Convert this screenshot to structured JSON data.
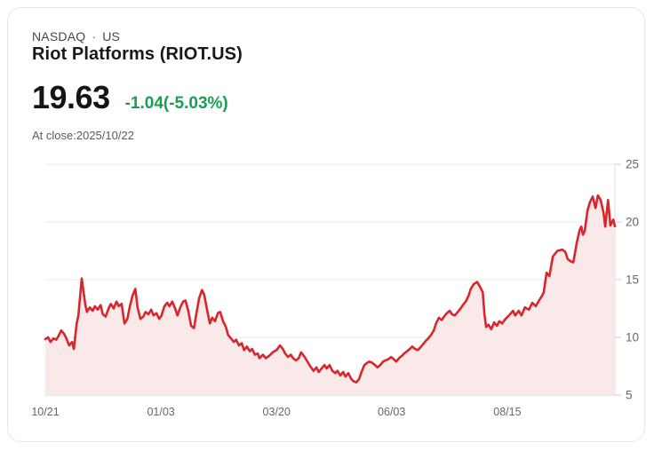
{
  "header": {
    "exchange": "NASDAQ",
    "separator": "·",
    "region": "US",
    "title": "Riot Platforms (RIOT.US)",
    "price": "19.63",
    "change": "-1.04(-5.03%)",
    "as_of": "At close:2025/10/22"
  },
  "colors": {
    "change_green": "#18a052",
    "line_red": "#d8262c",
    "area_pink": "#fae9e9",
    "grid": "#e8e8e8",
    "axis_strong": "#cfcfcf",
    "axis_right": "#dcdcdc",
    "tick_label": "#64686d"
  },
  "chart_data": {
    "type": "area",
    "title": "Riot Platforms (RIOT.US) 1-year price chart",
    "symbol": "RIOT.US",
    "last_price": 19.63,
    "x_range": [
      "2024/10/21",
      "2025/10/22"
    ],
    "ylim": [
      5,
      25
    ],
    "y_ticks": [
      25,
      20,
      15,
      10,
      5
    ],
    "x_ticks": [
      {
        "label": "10/21",
        "f": 0.0
      },
      {
        "label": "01/03",
        "f": 0.203
      },
      {
        "label": "03/20",
        "f": 0.406
      },
      {
        "label": "06/03",
        "f": 0.608
      },
      {
        "label": "08/15",
        "f": 0.811
      }
    ],
    "grid": true,
    "legend": false,
    "points": [
      [
        0.0,
        9.85
      ],
      [
        0.005,
        10.0
      ],
      [
        0.009,
        9.6
      ],
      [
        0.014,
        9.9
      ],
      [
        0.019,
        9.8
      ],
      [
        0.023,
        10.1
      ],
      [
        0.028,
        10.6
      ],
      [
        0.033,
        10.3
      ],
      [
        0.037,
        9.9
      ],
      [
        0.042,
        9.3
      ],
      [
        0.047,
        9.6
      ],
      [
        0.05,
        9.0
      ],
      [
        0.055,
        11.2
      ],
      [
        0.058,
        11.9
      ],
      [
        0.061,
        13.5
      ],
      [
        0.064,
        15.1
      ],
      [
        0.067,
        14.0
      ],
      [
        0.07,
        12.9
      ],
      [
        0.073,
        12.2
      ],
      [
        0.078,
        12.6
      ],
      [
        0.083,
        12.3
      ],
      [
        0.087,
        12.7
      ],
      [
        0.092,
        12.4
      ],
      [
        0.097,
        12.8
      ],
      [
        0.101,
        12.0
      ],
      [
        0.106,
        11.8
      ],
      [
        0.111,
        12.5
      ],
      [
        0.115,
        12.9
      ],
      [
        0.12,
        12.5
      ],
      [
        0.125,
        13.1
      ],
      [
        0.129,
        12.7
      ],
      [
        0.134,
        12.9
      ],
      [
        0.139,
        11.2
      ],
      [
        0.144,
        11.6
      ],
      [
        0.148,
        12.6
      ],
      [
        0.153,
        13.6
      ],
      [
        0.158,
        14.2
      ],
      [
        0.162,
        12.6
      ],
      [
        0.167,
        11.6
      ],
      [
        0.172,
        11.8
      ],
      [
        0.176,
        12.2
      ],
      [
        0.181,
        12.0
      ],
      [
        0.186,
        12.4
      ],
      [
        0.19,
        11.9
      ],
      [
        0.195,
        12.1
      ],
      [
        0.2,
        11.6
      ],
      [
        0.204,
        11.9
      ],
      [
        0.209,
        12.7
      ],
      [
        0.214,
        13.0
      ],
      [
        0.218,
        12.7
      ],
      [
        0.223,
        13.1
      ],
      [
        0.228,
        12.5
      ],
      [
        0.232,
        11.9
      ],
      [
        0.237,
        12.6
      ],
      [
        0.242,
        13.1
      ],
      [
        0.246,
        13.2
      ],
      [
        0.251,
        12.3
      ],
      [
        0.256,
        11.0
      ],
      [
        0.261,
        10.8
      ],
      [
        0.265,
        12.0
      ],
      [
        0.27,
        13.4
      ],
      [
        0.275,
        14.1
      ],
      [
        0.279,
        13.7
      ],
      [
        0.284,
        12.4
      ],
      [
        0.289,
        11.2
      ],
      [
        0.293,
        11.7
      ],
      [
        0.298,
        11.4
      ],
      [
        0.303,
        12.1
      ],
      [
        0.307,
        12.2
      ],
      [
        0.312,
        11.4
      ],
      [
        0.317,
        10.9
      ],
      [
        0.321,
        10.2
      ],
      [
        0.326,
        9.9
      ],
      [
        0.331,
        9.6
      ],
      [
        0.335,
        9.8
      ],
      [
        0.34,
        9.3
      ],
      [
        0.345,
        9.5
      ],
      [
        0.349,
        8.9
      ],
      [
        0.354,
        9.2
      ],
      [
        0.359,
        8.8
      ],
      [
        0.363,
        9.0
      ],
      [
        0.368,
        8.5
      ],
      [
        0.373,
        8.6
      ],
      [
        0.376,
        8.2
      ],
      [
        0.382,
        8.5
      ],
      [
        0.387,
        8.2
      ],
      [
        0.393,
        8.4
      ],
      [
        0.399,
        8.7
      ],
      [
        0.406,
        8.9
      ],
      [
        0.412,
        9.3
      ],
      [
        0.417,
        9.0
      ],
      [
        0.421,
        8.6
      ],
      [
        0.426,
        8.3
      ],
      [
        0.431,
        8.5
      ],
      [
        0.435,
        8.2
      ],
      [
        0.44,
        8.0
      ],
      [
        0.445,
        8.2
      ],
      [
        0.449,
        8.7
      ],
      [
        0.454,
        8.4
      ],
      [
        0.459,
        8.0
      ],
      [
        0.465,
        7.5
      ],
      [
        0.471,
        7.1
      ],
      [
        0.476,
        7.4
      ],
      [
        0.48,
        7.0
      ],
      [
        0.485,
        7.3
      ],
      [
        0.49,
        7.6
      ],
      [
        0.494,
        7.3
      ],
      [
        0.499,
        7.6
      ],
      [
        0.504,
        7.1
      ],
      [
        0.509,
        6.9
      ],
      [
        0.513,
        7.1
      ],
      [
        0.518,
        6.7
      ],
      [
        0.523,
        7.0
      ],
      [
        0.527,
        6.6
      ],
      [
        0.532,
        6.9
      ],
      [
        0.537,
        6.4
      ],
      [
        0.541,
        6.2
      ],
      [
        0.546,
        6.1
      ],
      [
        0.551,
        6.4
      ],
      [
        0.555,
        7.0
      ],
      [
        0.56,
        7.6
      ],
      [
        0.565,
        7.8
      ],
      [
        0.569,
        7.9
      ],
      [
        0.574,
        7.8
      ],
      [
        0.579,
        7.6
      ],
      [
        0.583,
        7.4
      ],
      [
        0.588,
        7.6
      ],
      [
        0.593,
        7.9
      ],
      [
        0.597,
        8.0
      ],
      [
        0.602,
        8.1
      ],
      [
        0.607,
        8.3
      ],
      [
        0.612,
        8.1
      ],
      [
        0.616,
        7.9
      ],
      [
        0.621,
        8.2
      ],
      [
        0.626,
        8.4
      ],
      [
        0.63,
        8.6
      ],
      [
        0.635,
        8.8
      ],
      [
        0.64,
        9.0
      ],
      [
        0.644,
        9.2
      ],
      [
        0.649,
        9.0
      ],
      [
        0.654,
        8.9
      ],
      [
        0.658,
        9.1
      ],
      [
        0.663,
        9.4
      ],
      [
        0.668,
        9.7
      ],
      [
        0.672,
        9.9
      ],
      [
        0.677,
        10.2
      ],
      [
        0.682,
        10.6
      ],
      [
        0.686,
        11.2
      ],
      [
        0.691,
        11.7
      ],
      [
        0.696,
        11.5
      ],
      [
        0.7,
        11.8
      ],
      [
        0.705,
        12.1
      ],
      [
        0.71,
        12.3
      ],
      [
        0.714,
        12.0
      ],
      [
        0.719,
        11.9
      ],
      [
        0.724,
        12.2
      ],
      [
        0.729,
        12.5
      ],
      [
        0.733,
        12.8
      ],
      [
        0.738,
        13.1
      ],
      [
        0.743,
        13.6
      ],
      [
        0.747,
        14.2
      ],
      [
        0.752,
        14.6
      ],
      [
        0.755,
        14.7
      ],
      [
        0.758,
        14.8
      ],
      [
        0.763,
        14.4
      ],
      [
        0.768,
        13.9
      ],
      [
        0.771,
        12.0
      ],
      [
        0.774,
        10.9
      ],
      [
        0.778,
        11.1
      ],
      [
        0.783,
        10.7
      ],
      [
        0.788,
        11.3
      ],
      [
        0.793,
        11.0
      ],
      [
        0.797,
        11.4
      ],
      [
        0.802,
        11.2
      ],
      [
        0.808,
        11.6
      ],
      [
        0.814,
        11.9
      ],
      [
        0.821,
        12.3
      ],
      [
        0.825,
        11.9
      ],
      [
        0.831,
        12.3
      ],
      [
        0.836,
        11.9
      ],
      [
        0.842,
        12.6
      ],
      [
        0.849,
        12.4
      ],
      [
        0.855,
        13.0
      ],
      [
        0.861,
        12.7
      ],
      [
        0.867,
        13.2
      ],
      [
        0.872,
        13.6
      ],
      [
        0.875,
        13.9
      ],
      [
        0.88,
        15.6
      ],
      [
        0.885,
        15.3
      ],
      [
        0.891,
        17.0
      ],
      [
        0.899,
        17.5
      ],
      [
        0.908,
        17.6
      ],
      [
        0.913,
        17.4
      ],
      [
        0.917,
        16.8
      ],
      [
        0.922,
        16.6
      ],
      [
        0.927,
        16.5
      ],
      [
        0.933,
        18.2
      ],
      [
        0.938,
        19.3
      ],
      [
        0.941,
        19.6
      ],
      [
        0.944,
        18.9
      ],
      [
        0.947,
        19.2
      ],
      [
        0.952,
        21.0
      ],
      [
        0.956,
        21.7
      ],
      [
        0.961,
        22.2
      ],
      [
        0.966,
        21.2
      ],
      [
        0.97,
        22.3
      ],
      [
        0.975,
        21.9
      ],
      [
        0.98,
        20.8
      ],
      [
        0.983,
        19.6
      ],
      [
        0.988,
        21.9
      ],
      [
        0.992,
        19.7
      ],
      [
        0.997,
        20.2
      ],
      [
        1.0,
        19.63
      ]
    ]
  }
}
